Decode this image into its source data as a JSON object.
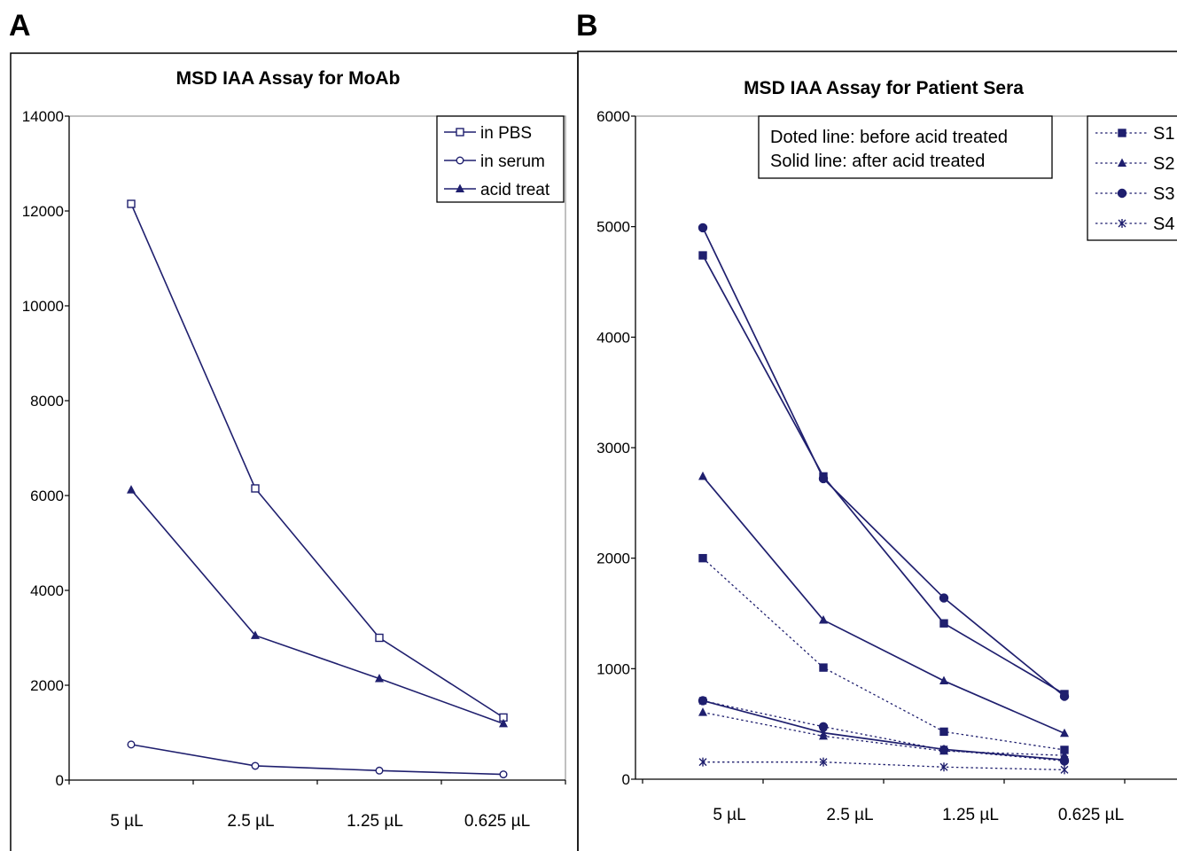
{
  "panels": {
    "a": {
      "letter": "A"
    },
    "b": {
      "letter": "B"
    }
  },
  "colors": {
    "series": "#1f1f6e",
    "frame": "#000000",
    "plot_border": "#9e9e9e"
  },
  "chart_data": [
    {
      "type": "line",
      "title": "MSD IAA Assay for MoAb",
      "categories": [
        "5 µL",
        "2.5 µL",
        "1.25 µL",
        "0.625 µL"
      ],
      "ylim": [
        0,
        14000
      ],
      "yticks": [
        0,
        2000,
        4000,
        6000,
        8000,
        10000,
        12000,
        14000
      ],
      "xlabel": "",
      "ylabel": "",
      "grid": false,
      "legend_position": "top-right",
      "series": [
        {
          "name": "in PBS",
          "marker": "square-open",
          "dash": "solid",
          "values": [
            12150,
            6150,
            3000,
            1320
          ]
        },
        {
          "name": "in serum",
          "marker": "circle-open",
          "dash": "solid",
          "values": [
            750,
            300,
            200,
            120
          ]
        },
        {
          "name": "acid treat",
          "marker": "triangle",
          "dash": "solid",
          "values": [
            6120,
            3050,
            2140,
            1190
          ]
        }
      ]
    },
    {
      "type": "line",
      "title": "MSD IAA Assay for Patient Sera",
      "categories": [
        "5 µL",
        "2.5 µL",
        "1.25 µL",
        "0.625 µL"
      ],
      "ylim": [
        0,
        6000
      ],
      "yticks": [
        0,
        1000,
        2000,
        3000,
        4000,
        5000,
        6000
      ],
      "xlabel": "",
      "ylabel": "",
      "grid": false,
      "legend_position": "top-right",
      "annotation": [
        "Doted line: before acid treated",
        "Solid line:  after acid treated"
      ],
      "legend_entries": [
        {
          "name": "S1",
          "marker": "square"
        },
        {
          "name": "S2",
          "marker": "triangle"
        },
        {
          "name": "S3",
          "marker": "circle"
        },
        {
          "name": "S4",
          "marker": "star"
        }
      ],
      "series": [
        {
          "sample": "S1",
          "marker": "square",
          "dash": "dotted",
          "values": [
            2000,
            1010,
            430,
            265
          ]
        },
        {
          "sample": "S2",
          "marker": "triangle",
          "dash": "dotted",
          "values": [
            605,
            390,
            255,
            215
          ]
        },
        {
          "sample": "S3",
          "marker": "circle",
          "dash": "dotted",
          "values": [
            710,
            475,
            265,
            165
          ]
        },
        {
          "sample": "S4",
          "marker": "star",
          "dash": "dotted",
          "values": [
            155,
            155,
            110,
            85
          ]
        },
        {
          "sample": "S1",
          "marker": "square",
          "dash": "solid",
          "values": [
            4740,
            2740,
            1410,
            770
          ]
        },
        {
          "sample": "S2",
          "marker": "triangle",
          "dash": "solid",
          "values": [
            2740,
            1440,
            890,
            415
          ]
        },
        {
          "sample": "S3",
          "marker": "circle",
          "dash": "solid",
          "values": [
            4990,
            2720,
            1640,
            750
          ]
        },
        {
          "sample": "S4",
          "marker": "star",
          "dash": "solid",
          "values": [
            710,
            420,
            270,
            175
          ]
        }
      ]
    }
  ]
}
